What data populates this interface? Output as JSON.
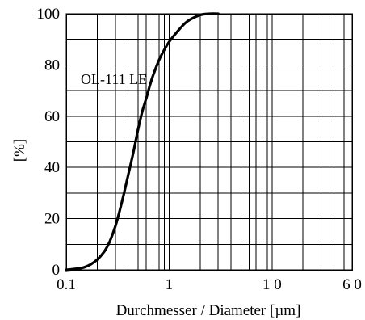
{
  "chart_data": {
    "type": "line",
    "xscale": "log",
    "xlim": [
      0.1,
      60
    ],
    "ylim": [
      0,
      100
    ],
    "xticks": [
      0.1,
      1,
      10,
      60
    ],
    "xtick_labels": [
      "0.1",
      "1",
      "1 0",
      "6 0"
    ],
    "yticks": [
      0,
      20,
      40,
      60,
      80,
      100
    ],
    "ytick_labels": [
      "0",
      "20",
      "40",
      "60",
      "80",
      "100"
    ],
    "xlabel": "Durchmesser / Diameter [µm]",
    "ylabel": "[%]",
    "grid": true,
    "legend": "none",
    "annotation": "OL-111 LE",
    "series": [
      {
        "name": "OL-111 LE",
        "x": [
          0.1,
          0.15,
          0.2,
          0.25,
          0.3,
          0.35,
          0.4,
          0.45,
          0.5,
          0.55,
          0.6,
          0.65,
          0.7,
          0.8,
          0.9,
          1.0,
          1.2,
          1.5,
          2.0,
          2.5,
          3.0
        ],
        "y": [
          0,
          1,
          4,
          9,
          17,
          27,
          37,
          46,
          55,
          62,
          67,
          72,
          76,
          82,
          86,
          89,
          93,
          97,
          99.5,
          100,
          100
        ]
      }
    ]
  }
}
